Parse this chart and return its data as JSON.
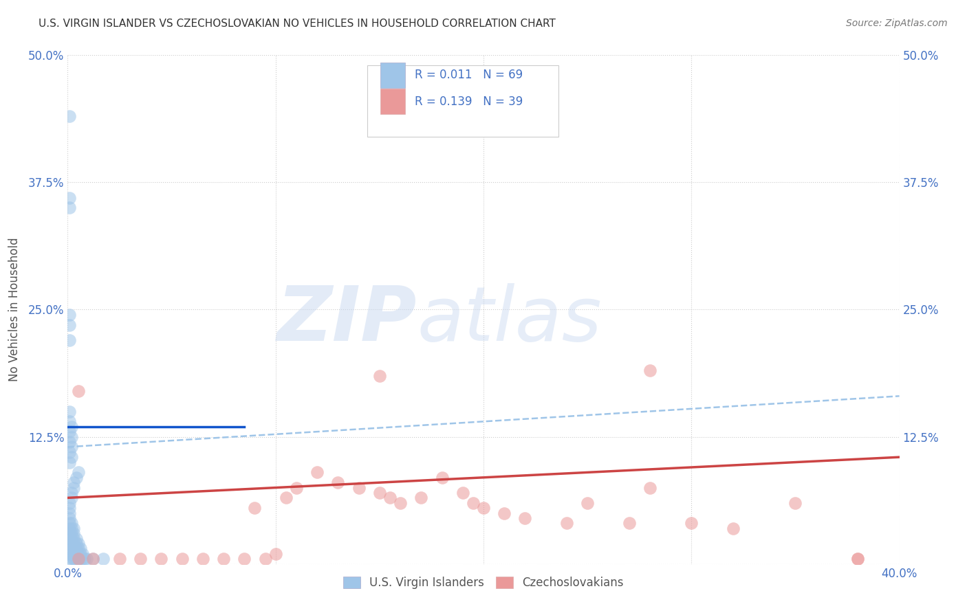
{
  "title": "U.S. VIRGIN ISLANDER VS CZECHOSLOVAKIAN NO VEHICLES IN HOUSEHOLD CORRELATION CHART",
  "source": "Source: ZipAtlas.com",
  "ylabel": "No Vehicles in Household",
  "xlim": [
    0.0,
    0.4
  ],
  "ylim": [
    0.0,
    0.5
  ],
  "xticks": [
    0.0,
    0.1,
    0.2,
    0.3,
    0.4
  ],
  "xtick_labels": [
    "0.0%",
    "",
    "",
    "",
    "40.0%"
  ],
  "yticks": [
    0.0,
    0.125,
    0.25,
    0.375,
    0.5
  ],
  "ytick_labels_left": [
    "",
    "12.5%",
    "25.0%",
    "37.5%",
    "50.0%"
  ],
  "ytick_labels_right": [
    "",
    "12.5%",
    "25.0%",
    "37.5%",
    "50.0%"
  ],
  "blue_color": "#9fc5e8",
  "pink_color": "#ea9999",
  "blue_line_color": "#1155cc",
  "pink_line_color": "#cc4444",
  "dashed_line_color": "#9fc5e8",
  "legend1_label": "U.S. Virgin Islanders",
  "legend2_label": "Czechoslovakians",
  "blue_line_x0": 0.0,
  "blue_line_x1": 0.085,
  "blue_line_y0": 0.135,
  "blue_line_y1": 0.135,
  "dashed_line_x0": 0.0,
  "dashed_line_x1": 0.4,
  "dashed_line_y0": 0.115,
  "dashed_line_y1": 0.165,
  "pink_line_x0": 0.0,
  "pink_line_x1": 0.4,
  "pink_line_y0": 0.065,
  "pink_line_y1": 0.105,
  "blue_scatter_x": [
    0.001,
    0.001,
    0.001,
    0.001,
    0.001,
    0.001,
    0.001,
    0.001,
    0.001,
    0.001,
    0.002,
    0.002,
    0.002,
    0.002,
    0.002,
    0.002,
    0.002,
    0.002,
    0.003,
    0.003,
    0.003,
    0.003,
    0.003,
    0.003,
    0.003,
    0.004,
    0.004,
    0.004,
    0.004,
    0.004,
    0.005,
    0.005,
    0.005,
    0.005,
    0.006,
    0.006,
    0.006,
    0.007,
    0.007,
    0.008,
    0.009,
    0.001,
    0.001,
    0.002,
    0.002,
    0.003,
    0.003,
    0.004,
    0.005,
    0.001,
    0.002,
    0.001,
    0.002,
    0.001,
    0.002,
    0.001,
    0.002,
    0.001,
    0.001,
    0.001,
    0.001,
    0.001,
    0.001,
    0.001,
    0.001,
    0.017,
    0.012,
    0.005,
    0.003
  ],
  "blue_scatter_y": [
    0.005,
    0.01,
    0.015,
    0.02,
    0.025,
    0.03,
    0.035,
    0.04,
    0.045,
    0.05,
    0.005,
    0.01,
    0.015,
    0.02,
    0.025,
    0.03,
    0.035,
    0.04,
    0.005,
    0.01,
    0.015,
    0.02,
    0.025,
    0.03,
    0.035,
    0.005,
    0.01,
    0.015,
    0.02,
    0.025,
    0.005,
    0.01,
    0.015,
    0.02,
    0.005,
    0.01,
    0.015,
    0.005,
    0.01,
    0.005,
    0.005,
    0.055,
    0.06,
    0.065,
    0.07,
    0.075,
    0.08,
    0.085,
    0.09,
    0.1,
    0.105,
    0.11,
    0.115,
    0.12,
    0.125,
    0.13,
    0.135,
    0.14,
    0.15,
    0.22,
    0.235,
    0.245,
    0.35,
    0.36,
    0.44,
    0.005,
    0.005,
    0.005,
    0.005
  ],
  "pink_scatter_x": [
    0.005,
    0.012,
    0.025,
    0.035,
    0.045,
    0.055,
    0.065,
    0.075,
    0.085,
    0.09,
    0.095,
    0.1,
    0.105,
    0.11,
    0.12,
    0.13,
    0.14,
    0.15,
    0.155,
    0.16,
    0.17,
    0.18,
    0.19,
    0.195,
    0.2,
    0.21,
    0.22,
    0.24,
    0.25,
    0.27,
    0.28,
    0.3,
    0.32,
    0.35,
    0.38,
    0.005,
    0.15,
    0.28,
    0.38
  ],
  "pink_scatter_y": [
    0.005,
    0.005,
    0.005,
    0.005,
    0.005,
    0.005,
    0.005,
    0.005,
    0.005,
    0.055,
    0.005,
    0.01,
    0.065,
    0.075,
    0.09,
    0.08,
    0.075,
    0.07,
    0.065,
    0.06,
    0.065,
    0.085,
    0.07,
    0.06,
    0.055,
    0.05,
    0.045,
    0.04,
    0.06,
    0.04,
    0.075,
    0.04,
    0.035,
    0.06,
    0.005,
    0.17,
    0.185,
    0.19,
    0.005
  ]
}
